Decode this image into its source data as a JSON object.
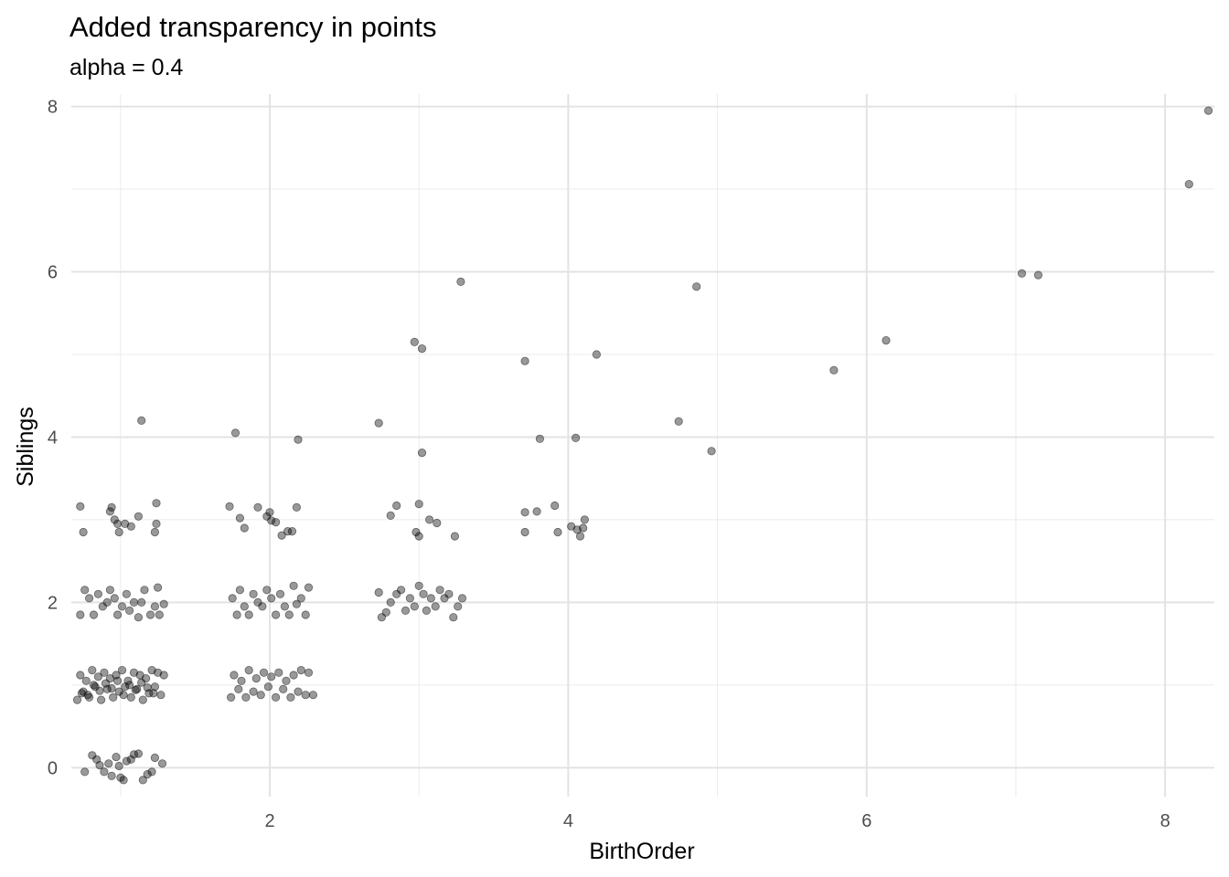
{
  "chart_data": {
    "type": "scatter",
    "title": "Added transparency in points",
    "subtitle": "alpha = 0.4",
    "xlabel": "BirthOrder",
    "ylabel": "Siblings",
    "xlim": [
      0.67,
      8.33
    ],
    "ylim": [
      -0.35,
      8.15
    ],
    "xticks": [
      2,
      4,
      6,
      8
    ],
    "yticks": [
      0,
      2,
      4,
      6,
      8
    ],
    "grid": true,
    "point_color": "#000000",
    "point_alpha": 0.4,
    "points": [
      [
        1.14,
        4.2
      ],
      [
        1.77,
        4.05
      ],
      [
        2.19,
        3.97
      ],
      [
        2.73,
        4.17
      ],
      [
        3.02,
        3.81
      ],
      [
        3.81,
        3.98
      ],
      [
        4.05,
        3.99
      ],
      [
        4.74,
        4.19
      ],
      [
        4.96,
        3.83
      ],
      [
        2.97,
        5.15
      ],
      [
        3.02,
        5.07
      ],
      [
        3.28,
        5.88
      ],
      [
        3.71,
        4.92
      ],
      [
        4.19,
        5.0
      ],
      [
        4.86,
        5.82
      ],
      [
        5.78,
        4.81
      ],
      [
        6.13,
        5.17
      ],
      [
        7.04,
        5.98
      ],
      [
        7.15,
        5.96
      ],
      [
        8.16,
        7.06
      ],
      [
        8.29,
        7.95
      ],
      [
        0.73,
        3.16
      ],
      [
        0.75,
        2.85
      ],
      [
        0.93,
        3.1
      ],
      [
        0.94,
        3.15
      ],
      [
        0.96,
        3.0
      ],
      [
        0.98,
        2.95
      ],
      [
        0.99,
        2.85
      ],
      [
        1.03,
        2.95
      ],
      [
        1.07,
        2.92
      ],
      [
        1.12,
        3.04
      ],
      [
        1.24,
        3.2
      ],
      [
        1.24,
        2.95
      ],
      [
        1.23,
        2.85
      ],
      [
        1.73,
        3.16
      ],
      [
        1.8,
        3.02
      ],
      [
        1.83,
        2.9
      ],
      [
        1.92,
        3.15
      ],
      [
        1.98,
        3.04
      ],
      [
        2.0,
        3.09
      ],
      [
        2.01,
        2.99
      ],
      [
        2.04,
        2.97
      ],
      [
        2.08,
        2.81
      ],
      [
        2.12,
        2.86
      ],
      [
        2.15,
        2.86
      ],
      [
        2.18,
        3.15
      ],
      [
        2.81,
        3.05
      ],
      [
        2.85,
        3.17
      ],
      [
        2.98,
        2.85
      ],
      [
        3.0,
        3.19
      ],
      [
        3.0,
        2.8
      ],
      [
        3.07,
        3.0
      ],
      [
        3.12,
        2.96
      ],
      [
        3.24,
        2.8
      ],
      [
        3.71,
        3.09
      ],
      [
        3.71,
        2.85
      ],
      [
        3.79,
        3.1
      ],
      [
        3.91,
        3.17
      ],
      [
        3.93,
        2.85
      ],
      [
        4.02,
        2.92
      ],
      [
        4.06,
        2.88
      ],
      [
        4.08,
        2.8
      ],
      [
        4.1,
        2.9
      ],
      [
        4.11,
        3.0
      ],
      [
        0.73,
        1.85
      ],
      [
        0.76,
        2.15
      ],
      [
        0.79,
        2.05
      ],
      [
        0.82,
        1.85
      ],
      [
        0.85,
        2.1
      ],
      [
        0.88,
        1.95
      ],
      [
        0.91,
        2.0
      ],
      [
        0.93,
        2.15
      ],
      [
        0.96,
        2.05
      ],
      [
        0.98,
        1.85
      ],
      [
        1.01,
        1.95
      ],
      [
        1.04,
        2.1
      ],
      [
        1.06,
        1.9
      ],
      [
        1.09,
        2.0
      ],
      [
        1.12,
        1.82
      ],
      [
        1.14,
        2.0
      ],
      [
        1.16,
        2.15
      ],
      [
        1.2,
        1.85
      ],
      [
        1.23,
        1.95
      ],
      [
        1.25,
        2.18
      ],
      [
        1.26,
        1.85
      ],
      [
        1.29,
        1.98
      ],
      [
        1.75,
        2.05
      ],
      [
        1.78,
        1.85
      ],
      [
        1.8,
        2.15
      ],
      [
        1.83,
        1.95
      ],
      [
        1.86,
        1.85
      ],
      [
        1.89,
        2.1
      ],
      [
        1.92,
        2.0
      ],
      [
        1.95,
        1.95
      ],
      [
        1.98,
        2.15
      ],
      [
        2.01,
        2.05
      ],
      [
        2.04,
        1.85
      ],
      [
        2.07,
        2.1
      ],
      [
        2.1,
        1.95
      ],
      [
        2.13,
        1.85
      ],
      [
        2.16,
        2.2
      ],
      [
        2.18,
        1.98
      ],
      [
        2.21,
        2.05
      ],
      [
        2.24,
        1.85
      ],
      [
        2.26,
        2.18
      ],
      [
        2.73,
        2.12
      ],
      [
        2.75,
        1.82
      ],
      [
        2.78,
        1.88
      ],
      [
        2.81,
        2.0
      ],
      [
        2.85,
        2.1
      ],
      [
        2.88,
        2.15
      ],
      [
        2.91,
        1.9
      ],
      [
        2.94,
        2.05
      ],
      [
        2.97,
        1.95
      ],
      [
        3.0,
        2.2
      ],
      [
        3.03,
        2.1
      ],
      [
        3.05,
        1.9
      ],
      [
        3.08,
        2.05
      ],
      [
        3.11,
        1.95
      ],
      [
        3.14,
        2.15
      ],
      [
        3.17,
        2.05
      ],
      [
        3.2,
        2.1
      ],
      [
        3.23,
        1.82
      ],
      [
        3.26,
        1.95
      ],
      [
        3.29,
        2.05
      ],
      [
        0.71,
        0.82
      ],
      [
        0.73,
        1.12
      ],
      [
        0.75,
        0.92
      ],
      [
        0.77,
        1.05
      ],
      [
        0.79,
        0.85
      ],
      [
        0.81,
        1.18
      ],
      [
        0.83,
        0.98
      ],
      [
        0.85,
        1.1
      ],
      [
        0.87,
        0.82
      ],
      [
        0.89,
        1.15
      ],
      [
        0.91,
        0.95
      ],
      [
        0.93,
        1.08
      ],
      [
        0.95,
        0.85
      ],
      [
        0.97,
        1.12
      ],
      [
        0.99,
        0.92
      ],
      [
        1.01,
        1.18
      ],
      [
        1.03,
        0.98
      ],
      [
        1.05,
        1.05
      ],
      [
        1.07,
        0.85
      ],
      [
        1.09,
        1.15
      ],
      [
        1.11,
        0.95
      ],
      [
        1.13,
        1.12
      ],
      [
        1.15,
        0.82
      ],
      [
        1.17,
        1.08
      ],
      [
        1.19,
        0.9
      ],
      [
        1.21,
        1.18
      ],
      [
        1.23,
        0.98
      ],
      [
        1.25,
        1.15
      ],
      [
        1.27,
        0.88
      ],
      [
        1.29,
        1.12
      ],
      [
        0.74,
        0.9
      ],
      [
        0.78,
        0.88
      ],
      [
        0.82,
        1.0
      ],
      [
        0.86,
        0.93
      ],
      [
        0.9,
        1.02
      ],
      [
        0.94,
        0.96
      ],
      [
        0.98,
        1.05
      ],
      [
        1.02,
        0.88
      ],
      [
        1.06,
        1.0
      ],
      [
        1.1,
        0.94
      ],
      [
        1.14,
        1.03
      ],
      [
        1.18,
        0.97
      ],
      [
        1.22,
        0.9
      ],
      [
        1.74,
        0.85
      ],
      [
        1.76,
        1.12
      ],
      [
        1.79,
        0.95
      ],
      [
        1.81,
        1.05
      ],
      [
        1.84,
        0.85
      ],
      [
        1.86,
        1.18
      ],
      [
        1.89,
        0.92
      ],
      [
        1.91,
        1.08
      ],
      [
        1.94,
        0.88
      ],
      [
        1.96,
        1.15
      ],
      [
        1.99,
        0.98
      ],
      [
        2.01,
        1.1
      ],
      [
        2.04,
        0.85
      ],
      [
        2.06,
        1.15
      ],
      [
        2.09,
        0.95
      ],
      [
        2.11,
        1.05
      ],
      [
        2.14,
        0.85
      ],
      [
        2.16,
        1.12
      ],
      [
        2.19,
        0.92
      ],
      [
        2.21,
        1.18
      ],
      [
        2.24,
        0.88
      ],
      [
        2.26,
        1.15
      ],
      [
        2.29,
        0.88
      ],
      [
        0.81,
        0.15
      ],
      [
        0.84,
        0.1
      ],
      [
        0.86,
        0.03
      ],
      [
        0.89,
        -0.05
      ],
      [
        0.92,
        0.05
      ],
      [
        0.94,
        -0.1
      ],
      [
        0.97,
        0.13
      ],
      [
        0.99,
        0.02
      ],
      [
        1.02,
        -0.15
      ],
      [
        1.04,
        0.08
      ],
      [
        1.07,
        0.1
      ],
      [
        1.09,
        0.16
      ],
      [
        1.12,
        0.17
      ],
      [
        1.15,
        -0.15
      ],
      [
        1.18,
        -0.08
      ],
      [
        1.21,
        -0.05
      ],
      [
        1.23,
        0.12
      ],
      [
        1.28,
        0.05
      ],
      [
        0.76,
        -0.05
      ],
      [
        1.0,
        -0.12
      ]
    ]
  }
}
